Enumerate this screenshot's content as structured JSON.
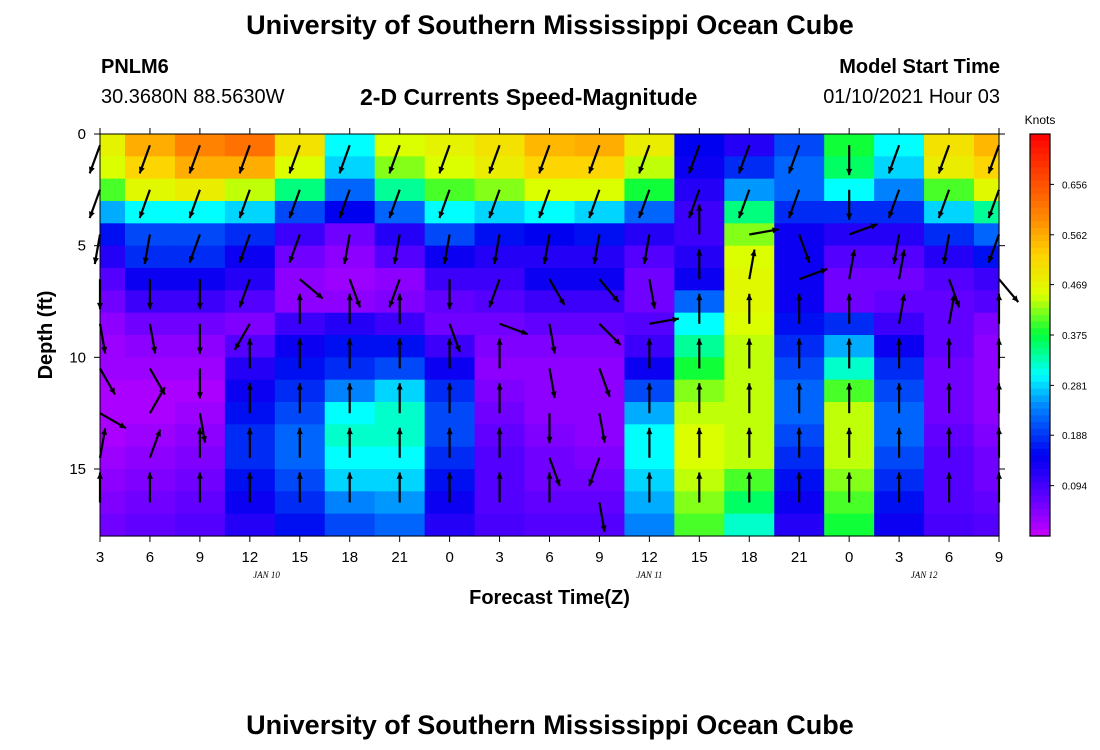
{
  "page": {
    "title_top": "University of Southern Mississippi Ocean Cube",
    "title_bottom": "University of Southern Mississippi Ocean Cube",
    "station_id": "PNLM6",
    "station_coords": "30.3680N 88.5630W",
    "plot_title": "2-D Currents Speed-Magnitude",
    "model_label": "Model Start Time",
    "model_time": "01/10/2021 Hour 03"
  },
  "chart_data": {
    "type": "heatmap",
    "title": "2-D Currents Speed-Magnitude",
    "xlabel": "Forecast Time(Z)",
    "ylabel": "Depth (ft)",
    "colorbar_label": "Knots",
    "colorbar_ticks": [
      "0.656",
      "0.562",
      "0.469",
      "0.375",
      "0.281",
      "0.188",
      "0.094"
    ],
    "colorbar_tick_values": [
      0.656,
      0.562,
      0.469,
      0.375,
      0.281,
      0.188,
      0.094
    ],
    "zlim": [
      0.0,
      0.75
    ],
    "x_tick_labels": [
      "3",
      "6",
      "9",
      "12",
      "15",
      "18",
      "21",
      "0",
      "3",
      "6",
      "9",
      "12",
      "15",
      "18",
      "21",
      "0",
      "3",
      "6",
      "9"
    ],
    "x_tick_hours": [
      3,
      6,
      9,
      12,
      15,
      18,
      21,
      24,
      27,
      30,
      33,
      36,
      39,
      42,
      45,
      48,
      51,
      54,
      57
    ],
    "xlim": [
      3,
      57
    ],
    "date_labels": [
      {
        "text": "JAN 10",
        "hour": 13
      },
      {
        "text": "JAN 11",
        "hour": 36
      },
      {
        "text": "JAN 12",
        "hour": 52.5
      }
    ],
    "y_tick_labels": [
      "0",
      "5",
      "10",
      "15"
    ],
    "y_tick_values": [
      0,
      5,
      10,
      15
    ],
    "ylim": [
      0,
      18
    ],
    "depth_levels": [
      0.5,
      1.5,
      2.5,
      3.5,
      4.5,
      5.5,
      6.5,
      7.5,
      8.5,
      9.5,
      10.5,
      11.5,
      12.5,
      13.5,
      14.5,
      15.5,
      16.5,
      17.5
    ],
    "time_columns": [
      3,
      6,
      9,
      12,
      15,
      18,
      21,
      24,
      27,
      30,
      33,
      36,
      39,
      42,
      45,
      48,
      51,
      54,
      57
    ],
    "speed_knots": [
      [
        0.47,
        0.56,
        0.6,
        0.62,
        0.5,
        0.3,
        0.45,
        0.47,
        0.5,
        0.55,
        0.56,
        0.48,
        0.15,
        0.12,
        0.2,
        0.38,
        0.3,
        0.5,
        0.55
      ],
      [
        0.45,
        0.52,
        0.56,
        0.56,
        0.45,
        0.28,
        0.42,
        0.45,
        0.48,
        0.52,
        0.52,
        0.44,
        0.14,
        0.18,
        0.22,
        0.36,
        0.28,
        0.48,
        0.52
      ],
      [
        0.4,
        0.46,
        0.48,
        0.44,
        0.35,
        0.22,
        0.34,
        0.4,
        0.42,
        0.45,
        0.45,
        0.38,
        0.12,
        0.25,
        0.22,
        0.3,
        0.24,
        0.4,
        0.46
      ],
      [
        0.26,
        0.3,
        0.3,
        0.28,
        0.2,
        0.15,
        0.22,
        0.3,
        0.28,
        0.3,
        0.28,
        0.22,
        0.1,
        0.35,
        0.18,
        0.18,
        0.18,
        0.28,
        0.34
      ],
      [
        0.16,
        0.2,
        0.2,
        0.18,
        0.1,
        0.06,
        0.12,
        0.2,
        0.16,
        0.15,
        0.16,
        0.12,
        0.1,
        0.42,
        0.14,
        0.12,
        0.12,
        0.18,
        0.22
      ],
      [
        0.12,
        0.18,
        0.18,
        0.14,
        0.06,
        0.04,
        0.08,
        0.14,
        0.12,
        0.12,
        0.12,
        0.08,
        0.12,
        0.45,
        0.14,
        0.08,
        0.08,
        0.12,
        0.16
      ],
      [
        0.08,
        0.14,
        0.14,
        0.12,
        0.04,
        0.03,
        0.04,
        0.1,
        0.1,
        0.14,
        0.14,
        0.06,
        0.14,
        0.46,
        0.14,
        0.06,
        0.06,
        0.08,
        0.1
      ],
      [
        0.06,
        0.1,
        0.1,
        0.08,
        0.04,
        0.04,
        0.05,
        0.07,
        0.08,
        0.1,
        0.1,
        0.06,
        0.22,
        0.46,
        0.14,
        0.06,
        0.07,
        0.07,
        0.08
      ],
      [
        0.04,
        0.06,
        0.06,
        0.05,
        0.1,
        0.12,
        0.1,
        0.06,
        0.06,
        0.07,
        0.07,
        0.08,
        0.3,
        0.45,
        0.16,
        0.18,
        0.1,
        0.07,
        0.05
      ],
      [
        0.03,
        0.04,
        0.04,
        0.08,
        0.14,
        0.16,
        0.16,
        0.1,
        0.05,
        0.05,
        0.05,
        0.1,
        0.34,
        0.44,
        0.18,
        0.26,
        0.14,
        0.07,
        0.04
      ],
      [
        0.03,
        0.03,
        0.03,
        0.12,
        0.16,
        0.18,
        0.2,
        0.14,
        0.04,
        0.04,
        0.04,
        0.14,
        0.38,
        0.44,
        0.2,
        0.32,
        0.18,
        0.06,
        0.04
      ],
      [
        0.02,
        0.02,
        0.02,
        0.14,
        0.18,
        0.24,
        0.28,
        0.18,
        0.05,
        0.04,
        0.04,
        0.2,
        0.42,
        0.44,
        0.22,
        0.4,
        0.2,
        0.06,
        0.04
      ],
      [
        0.02,
        0.02,
        0.03,
        0.16,
        0.2,
        0.3,
        0.32,
        0.2,
        0.06,
        0.04,
        0.04,
        0.26,
        0.44,
        0.44,
        0.22,
        0.44,
        0.22,
        0.06,
        0.04
      ],
      [
        0.02,
        0.03,
        0.04,
        0.18,
        0.22,
        0.32,
        0.32,
        0.2,
        0.07,
        0.05,
        0.04,
        0.3,
        0.45,
        0.44,
        0.2,
        0.44,
        0.22,
        0.07,
        0.05
      ],
      [
        0.03,
        0.04,
        0.05,
        0.18,
        0.22,
        0.3,
        0.3,
        0.18,
        0.08,
        0.06,
        0.05,
        0.3,
        0.45,
        0.44,
        0.18,
        0.44,
        0.2,
        0.08,
        0.06
      ],
      [
        0.04,
        0.05,
        0.06,
        0.16,
        0.2,
        0.28,
        0.28,
        0.16,
        0.08,
        0.06,
        0.06,
        0.28,
        0.44,
        0.4,
        0.16,
        0.42,
        0.18,
        0.08,
        0.06
      ],
      [
        0.05,
        0.06,
        0.07,
        0.14,
        0.18,
        0.24,
        0.25,
        0.14,
        0.08,
        0.07,
        0.07,
        0.26,
        0.42,
        0.36,
        0.14,
        0.4,
        0.16,
        0.08,
        0.07
      ],
      [
        0.06,
        0.07,
        0.08,
        0.12,
        0.16,
        0.2,
        0.22,
        0.12,
        0.09,
        0.08,
        0.08,
        0.24,
        0.4,
        0.32,
        0.12,
        0.38,
        0.14,
        0.09,
        0.08
      ]
    ],
    "vector_depths": [
      0.5,
      2.5,
      4.5,
      6.5,
      8.5,
      10.5,
      12.5,
      14.5,
      16.5
    ],
    "vector_direction_deg": [
      [
        200,
        200,
        200,
        200,
        200,
        200,
        200,
        200,
        200,
        200,
        200,
        200,
        200,
        200,
        200,
        180,
        200,
        200,
        200
      ],
      [
        200,
        200,
        200,
        200,
        200,
        200,
        200,
        200,
        200,
        200,
        200,
        200,
        200,
        200,
        200,
        180,
        200,
        200,
        200
      ],
      [
        190,
        190,
        200,
        200,
        200,
        190,
        190,
        190,
        190,
        190,
        190,
        190,
        0,
        80,
        160,
        70,
        190,
        190,
        200
      ],
      [
        180,
        180,
        180,
        200,
        130,
        160,
        200,
        180,
        200,
        150,
        140,
        170,
        0,
        10,
        70,
        10,
        10,
        160,
        140
      ],
      [
        170,
        170,
        180,
        210,
        0,
        0,
        0,
        160,
        110,
        170,
        135,
        80,
        0,
        0,
        0,
        0,
        10,
        10,
        0
      ],
      [
        150,
        150,
        180,
        0,
        0,
        0,
        0,
        0,
        0,
        170,
        160,
        0,
        0,
        0,
        0,
        0,
        0,
        0,
        0
      ],
      [
        120,
        30,
        170,
        0,
        0,
        0,
        0,
        0,
        0,
        180,
        170,
        0,
        0,
        0,
        0,
        0,
        0,
        0,
        0
      ],
      [
        10,
        20,
        0,
        0,
        0,
        0,
        0,
        0,
        0,
        160,
        200,
        0,
        0,
        0,
        0,
        0,
        0,
        0,
        0
      ],
      [
        0,
        0,
        0,
        0,
        0,
        0,
        0,
        0,
        0,
        0,
        170,
        0,
        0,
        0,
        0,
        0,
        0,
        0,
        0
      ]
    ]
  }
}
